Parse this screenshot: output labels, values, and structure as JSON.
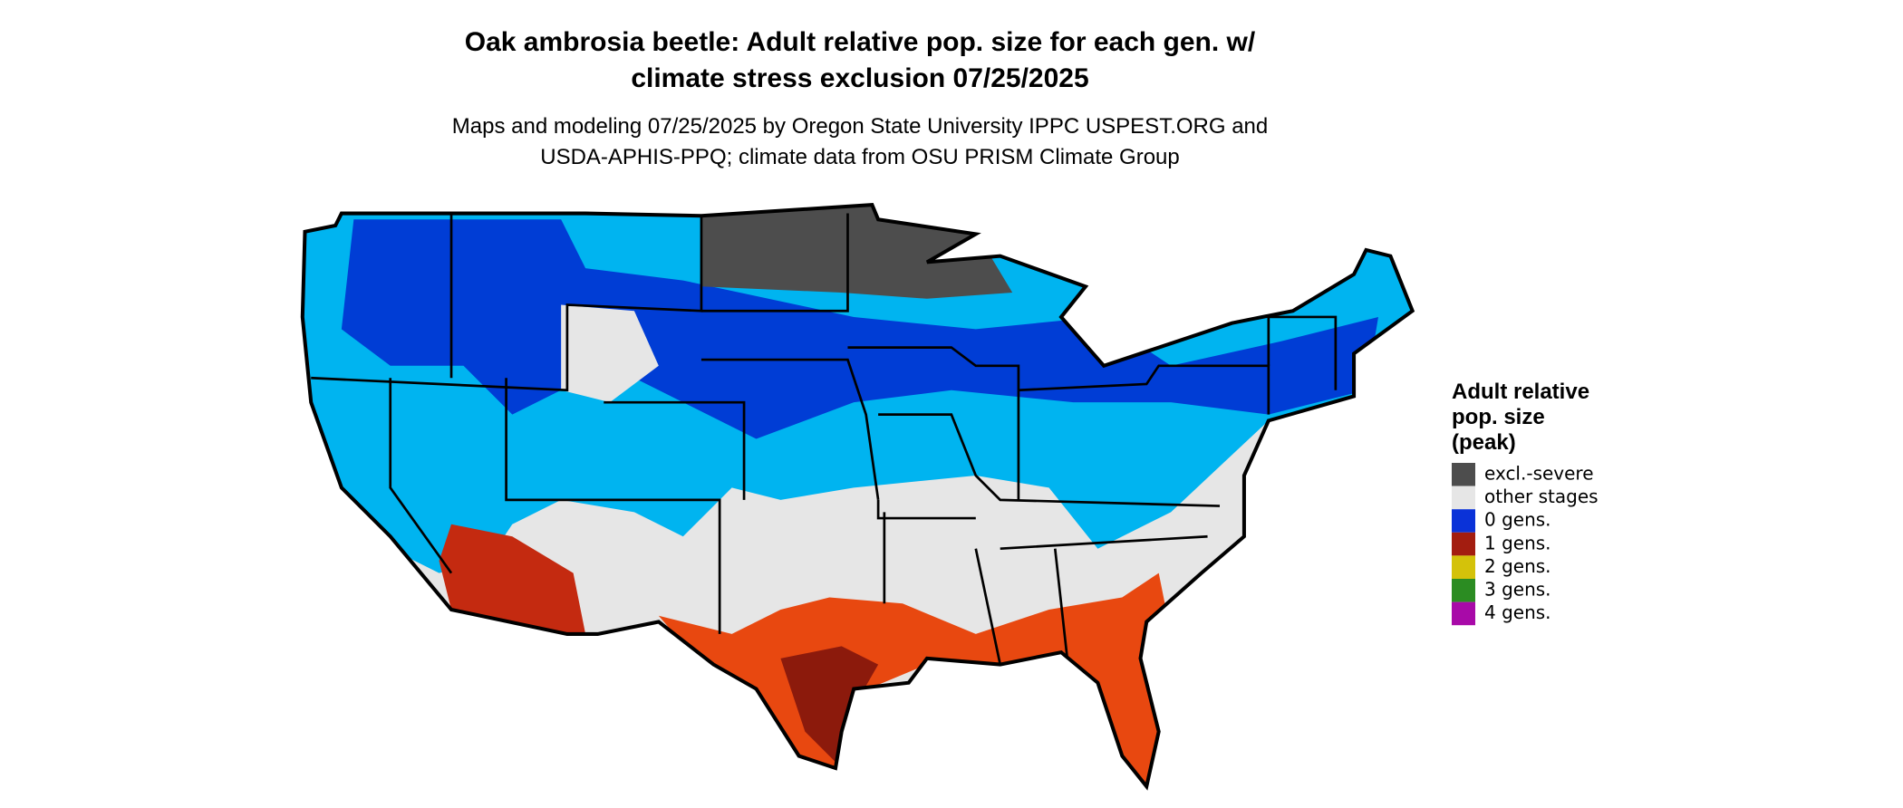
{
  "title": [
    "Oak ambrosia beetle: Adult relative pop. size for each gen. w/",
    "climate stress exclusion 07/25/2025"
  ],
  "subtitle": [
    "Maps and modeling 07/25/2025 by Oregon State University IPPC USPEST.ORG and",
    "USDA-APHIS-PPQ; climate data from OSU PRISM Climate Group"
  ],
  "legend": {
    "title": [
      "Adult relative",
      "pop. size",
      "(peak)"
    ],
    "items": [
      {
        "label": "excl.-severe",
        "color": "#4d4d4d"
      },
      {
        "label": "other stages",
        "color": "#e6e6e6"
      },
      {
        "label": "0 gens.",
        "color": "#0a32d8"
      },
      {
        "label": "1 gens.",
        "color": "#a31d10"
      },
      {
        "label": "2 gens.",
        "color": "#d4c20a"
      },
      {
        "label": "3 gens.",
        "color": "#2b8c22"
      },
      {
        "label": "4 gens.",
        "color": "#a80aa8"
      }
    ]
  }
}
